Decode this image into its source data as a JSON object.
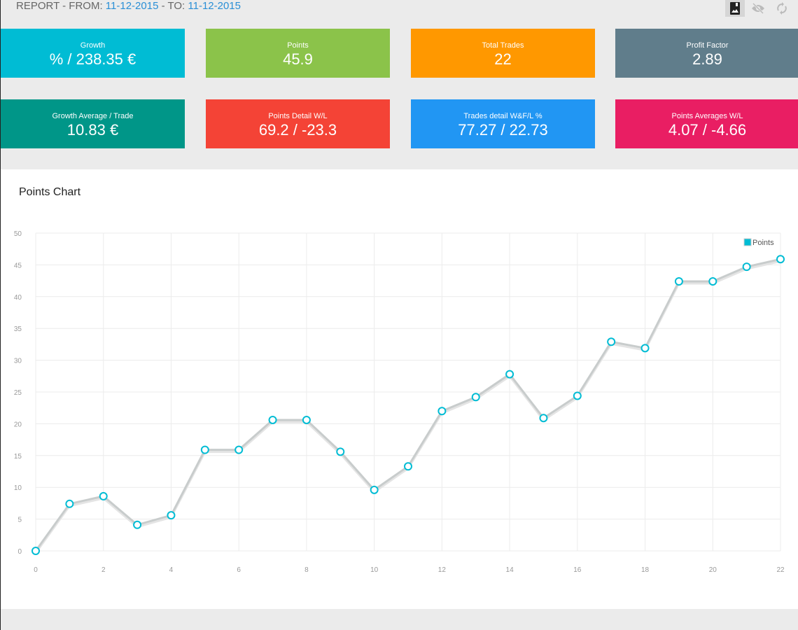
{
  "header": {
    "prefix": "REPORT - FROM: ",
    "from": "11-12-2015",
    "mid": " - TO: ",
    "to": "11-12-2015"
  },
  "toolbar": [
    {
      "icon": "image-icon",
      "active": true
    },
    {
      "icon": "eye-off-icon"
    },
    {
      "icon": "refresh-icon"
    }
  ],
  "cards": [
    {
      "label": "Growth",
      "value": "% / 238.35 €",
      "color": "#00BCD4"
    },
    {
      "label": "Points",
      "value": "45.9",
      "color": "#8BC34A"
    },
    {
      "label": "Total Trades",
      "value": "22",
      "color": "#FF9800"
    },
    {
      "label": "Profit Factor",
      "value": "2.89",
      "color": "#607D8B"
    },
    {
      "label": "Growth Average / Trade",
      "value": "10.83 €",
      "color": "#009688"
    },
    {
      "label": "Points Detail W/L",
      "value": "69.2 / -23.3",
      "color": "#F44336"
    },
    {
      "label": "Trades detail W&F/L %",
      "value": "77.27 / 22.73",
      "color": "#2196F3"
    },
    {
      "label": "Points Averages W/L",
      "value": "4.07 / -4.66",
      "color": "#E91E63"
    }
  ],
  "chart_title": "Points Chart",
  "chart_data": {
    "type": "line",
    "x": [
      0,
      1,
      2,
      3,
      4,
      5,
      6,
      7,
      8,
      9,
      10,
      11,
      12,
      13,
      14,
      15,
      16,
      17,
      18,
      19,
      20,
      21,
      22
    ],
    "series": [
      {
        "name": "Points",
        "values": [
          0,
          7.4,
          8.6,
          4.1,
          5.6,
          15.9,
          15.9,
          20.6,
          20.6,
          15.6,
          9.6,
          13.3,
          22.0,
          24.2,
          27.8,
          20.9,
          24.4,
          32.9,
          31.9,
          42.4,
          42.4,
          44.7,
          45.9
        ],
        "color": "#00BCD4"
      }
    ],
    "xlim": [
      0,
      22
    ],
    "ylim": [
      0,
      50
    ],
    "xticks": [
      0,
      2,
      4,
      6,
      8,
      10,
      12,
      14,
      16,
      18,
      20,
      22
    ],
    "yticks": [
      0,
      5,
      10,
      15,
      20,
      25,
      30,
      35,
      40,
      45,
      50
    ],
    "grid": true,
    "legend": "top-right"
  }
}
